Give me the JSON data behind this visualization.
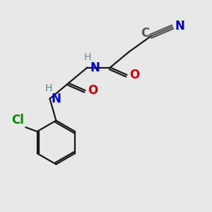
{
  "background_color": "#e8e8e8",
  "bond_color": "#1a1a1a",
  "nitrogen_color": "#0000cc",
  "oxygen_color": "#cc0000",
  "chlorine_color": "#008800",
  "gray_color": "#555555",
  "teal_color": "#4a9090",
  "figsize": [
    3.0,
    3.0
  ],
  "dpi": 100,
  "xlim": [
    0,
    10
  ],
  "ylim": [
    0,
    10
  ]
}
